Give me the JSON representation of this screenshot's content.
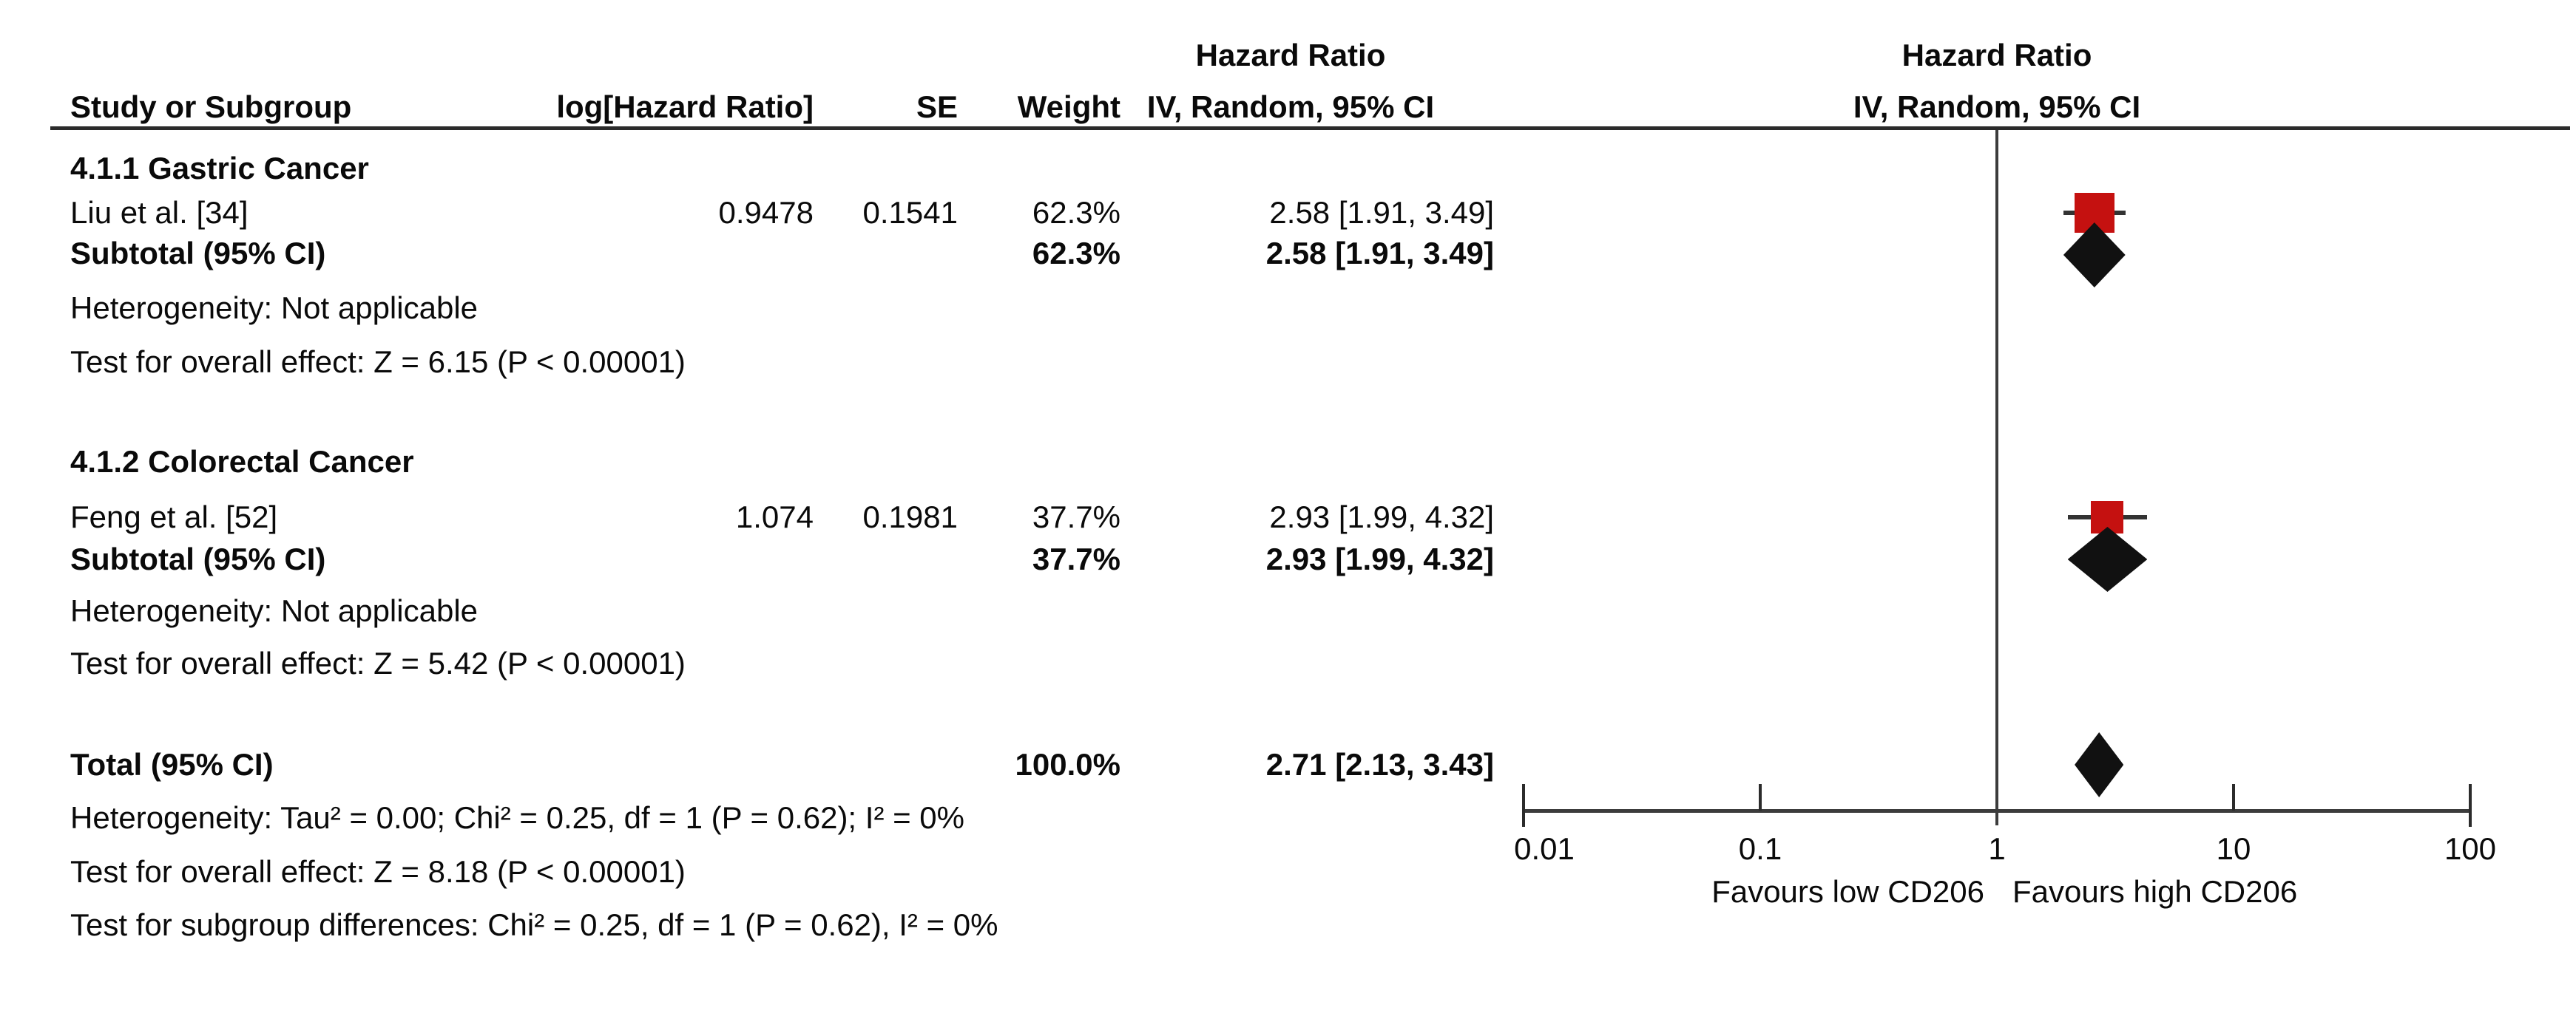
{
  "colors": {
    "marker_red": "#c51110",
    "diamond_black": "#111111",
    "line_gray": "#3c3c3c",
    "ink": "#0a0a0a"
  },
  "header": {
    "col_study": "Study or Subgroup",
    "col_loghr": "log[Hazard Ratio]",
    "col_se": "SE",
    "col_weight": "Weight",
    "stat_group_title": "Hazard Ratio",
    "stat_group_subtitle": "IV, Random, 95% CI",
    "plot_group_title": "Hazard Ratio",
    "plot_group_subtitle": "IV, Random, 95% CI"
  },
  "sections": [
    {
      "title": "4.1.1 Gastric Cancer",
      "study": {
        "name": "Liu et al. [34]",
        "loghr": "0.9478",
        "se": "0.1541",
        "weight": "62.3%",
        "ci": "2.58 [1.91, 3.49]"
      },
      "subtotal": {
        "label": "Subtotal (95% CI)",
        "weight": "62.3%",
        "ci": "2.58 [1.91, 3.49]"
      },
      "heterogeneity": "Heterogeneity: Not applicable",
      "overall": "Test for overall effect: Z = 6.15 (P < 0.00001)"
    },
    {
      "title": "4.1.2 Colorectal Cancer",
      "study": {
        "name": "Feng et al. [52]",
        "loghr": "1.074",
        "se": "0.1981",
        "weight": "37.7%",
        "ci": "2.93 [1.99, 4.32]"
      },
      "subtotal": {
        "label": "Subtotal (95% CI)",
        "weight": "37.7%",
        "ci": "2.93 [1.99, 4.32]"
      },
      "heterogeneity": "Heterogeneity: Not applicable",
      "overall": "Test for overall effect: Z = 5.42 (P < 0.00001)"
    }
  ],
  "total": {
    "label": "Total (95% CI)",
    "weight": "100.0%",
    "ci": "2.71 [2.13, 3.43]",
    "heterogeneity": "Heterogeneity: Tau² = 0.00; Chi² = 0.25, df = 1 (P = 0.62); I² = 0%",
    "overall": "Test for overall effect: Z = 8.18 (P < 0.00001)",
    "subgroup": "Test for subgroup differences: Chi² = 0.25, df = 1 (P = 0.62), I² = 0%"
  },
  "chart_data": {
    "type": "forest",
    "x_scale": "log10",
    "x_range": [
      0.01,
      100
    ],
    "null_line": 1,
    "x_ticks": [
      0.01,
      0.1,
      1,
      10,
      100
    ],
    "x_tick_labels": [
      "0.01",
      "0.1",
      "1",
      "10",
      "100"
    ],
    "favours_left": "Favours low CD206",
    "favours_right": "Favours high CD206",
    "effect_label": "Hazard Ratio",
    "model": "IV, Random, 95% CI",
    "entries": [
      {
        "id": "liu",
        "kind": "square",
        "label": "Liu et al. [34]",
        "hr": 2.58,
        "lo": 1.91,
        "hi": 3.49,
        "weight_pct": 62.3
      },
      {
        "id": "gastric-subtotal",
        "kind": "diamond",
        "label": "Subtotal Gastric Cancer",
        "hr": 2.58,
        "lo": 1.91,
        "hi": 3.49,
        "weight_pct": 62.3
      },
      {
        "id": "feng",
        "kind": "square",
        "label": "Feng et al. [52]",
        "hr": 2.93,
        "lo": 1.99,
        "hi": 4.32,
        "weight_pct": 37.7
      },
      {
        "id": "colorectal-subtotal",
        "kind": "diamond",
        "label": "Subtotal Colorectal Cancer",
        "hr": 2.93,
        "lo": 1.99,
        "hi": 4.32,
        "weight_pct": 37.7
      },
      {
        "id": "total",
        "kind": "diamond",
        "label": "Total",
        "hr": 2.71,
        "lo": 2.13,
        "hi": 3.43,
        "weight_pct": 100.0
      }
    ]
  }
}
